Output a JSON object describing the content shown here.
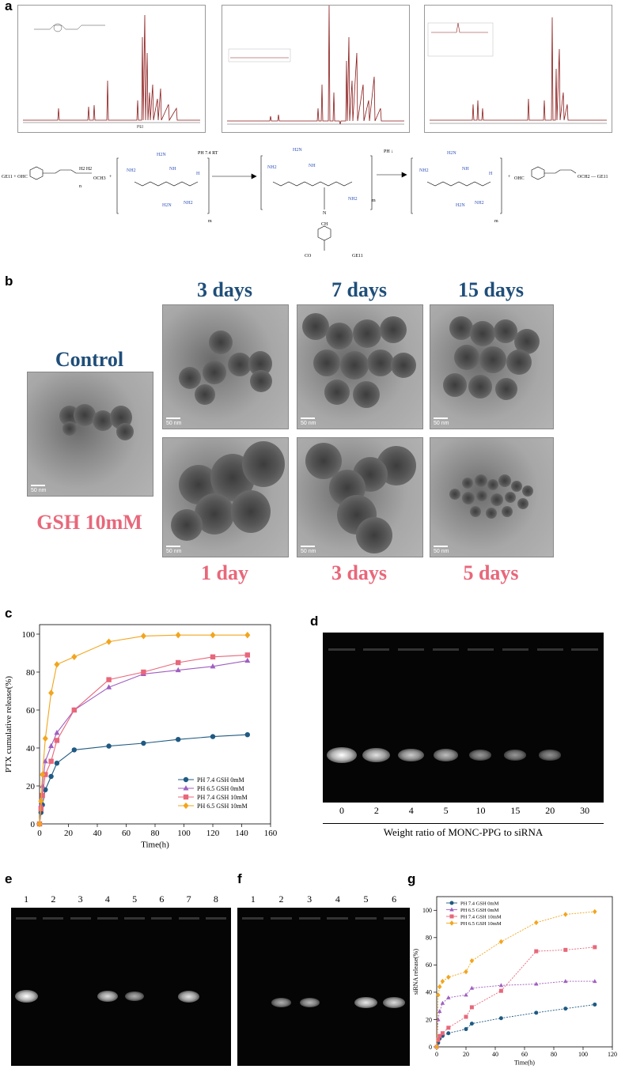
{
  "panels": {
    "a": "a",
    "b": "b",
    "c": "c",
    "d": "d",
    "e": "e",
    "f": "f",
    "g": "g"
  },
  "panel_a": {
    "nmr_label": "PEI",
    "scheme": {
      "reactant": "GE11 + OHC",
      "conditions_1": "PH 7.4   RT",
      "conditions_2": "PH ↓",
      "product_tail": "OCH2 — GE11",
      "product_tail_2": "GE11",
      "imine": "CH",
      "imine_n": "N",
      "carbonyl": "CO",
      "amine_h2n": "H2N",
      "amine_nh2": "NH2",
      "amine_nh": "NH",
      "amine_h": "H",
      "amine_n": "N",
      "repeat_m": "m",
      "repeat_n": "n",
      "ohc": "OHC",
      "och3": "OCH3",
      "h2h2": "H2 H2",
      "plus": "+"
    }
  },
  "panel_b": {
    "top_labels": [
      "3 days",
      "7 days",
      "15 days"
    ],
    "control_label": "Control",
    "gsh_label": "GSH 10mM",
    "bottom_labels": [
      "1 day",
      "3 days",
      "5 days"
    ],
    "scale_text": "50 nm",
    "colors": {
      "top": "#1f4e79",
      "bottom": "#e8677a"
    }
  },
  "panel_d": {
    "lane_labels": [
      "0",
      "2",
      "4",
      "5",
      "10",
      "15",
      "20",
      "30"
    ],
    "band_intensity": [
      1.0,
      0.8,
      0.65,
      0.55,
      0.3,
      0.28,
      0.25,
      0.0
    ],
    "caption": "Weight ratio of MONC-PPG to siRNA"
  },
  "panel_e": {
    "lane_labels": [
      "1",
      "2",
      "3",
      "4",
      "5",
      "6",
      "7",
      "8"
    ],
    "band_intensity": [
      1.0,
      0.0,
      0.0,
      0.75,
      0.45,
      0.0,
      0.8,
      0.0
    ]
  },
  "panel_f": {
    "lane_labels": [
      "1",
      "2",
      "3",
      "4",
      "5",
      "6"
    ],
    "band_intensity": [
      0.0,
      0.45,
      0.5,
      0.0,
      0.85,
      0.75
    ]
  },
  "chart_data": [
    {
      "panel": "c",
      "type": "line",
      "title": "",
      "xlabel": "Time(h)",
      "ylabel": "PTX cumulative release(%)",
      "xlim": [
        0,
        160
      ],
      "ylim": [
        0,
        105
      ],
      "xticks": [
        0,
        20,
        40,
        60,
        80,
        100,
        120,
        140,
        160
      ],
      "yticks": [
        0,
        20,
        40,
        60,
        80,
        100
      ],
      "legend_position": "bottom-right",
      "series": [
        {
          "name": "PH 7.4 GSH 0mM",
          "color": "#1f5a82",
          "marker": "circle",
          "x": [
            0,
            1,
            2,
            4,
            8,
            12,
            24,
            48,
            72,
            96,
            120,
            144
          ],
          "y": [
            0,
            6,
            10,
            18,
            25,
            32,
            39,
            41,
            42.5,
            44.5,
            46,
            47
          ]
        },
        {
          "name": "PH 6.5 GSH 0mM",
          "color": "#a05fc0",
          "marker": "triangle",
          "x": [
            0,
            1,
            2,
            4,
            8,
            12,
            24,
            48,
            72,
            96,
            120,
            144
          ],
          "y": [
            0,
            10,
            20,
            33,
            41,
            48,
            60,
            72,
            79,
            81,
            83,
            86
          ]
        },
        {
          "name": "PH 7.4 GSH 10mM",
          "color": "#e8677a",
          "marker": "square",
          "x": [
            0,
            1,
            2,
            4,
            8,
            12,
            24,
            48,
            72,
            96,
            120,
            144
          ],
          "y": [
            0,
            8,
            15,
            26,
            33,
            44,
            60,
            76,
            80,
            85,
            88,
            89
          ]
        },
        {
          "name": "PH 6.5 GSH 10mM",
          "color": "#f2a51d",
          "marker": "diamond",
          "x": [
            0,
            1,
            2,
            4,
            8,
            12,
            24,
            48,
            72,
            96,
            120,
            144
          ],
          "y": [
            0,
            12,
            26,
            45,
            69,
            84,
            88,
            96,
            99,
            99.5,
            99.5,
            99.5
          ]
        }
      ]
    },
    {
      "panel": "g",
      "type": "line",
      "title": "",
      "xlabel": "Time(h)",
      "ylabel": "siRNA release(%)",
      "xlim": [
        0,
        120
      ],
      "ylim": [
        0,
        110
      ],
      "xticks": [
        0,
        20,
        40,
        60,
        80,
        100,
        120
      ],
      "yticks": [
        0,
        20,
        40,
        60,
        80,
        100
      ],
      "legend_position": "top-left",
      "series": [
        {
          "name": "PH 7.4 GSH 0mM",
          "color": "#1f5a82",
          "marker": "circle",
          "x": [
            0,
            1,
            2,
            4,
            8,
            20,
            24,
            44,
            68,
            88,
            108
          ],
          "y": [
            0,
            3,
            6,
            8,
            10,
            13,
            17,
            21,
            25,
            28,
            31
          ]
        },
        {
          "name": "PH 6.5 GSH 0mM",
          "color": "#a05fc0",
          "marker": "triangle",
          "x": [
            0,
            1,
            2,
            4,
            8,
            20,
            24,
            44,
            68,
            88,
            108
          ],
          "y": [
            0,
            20,
            26,
            32,
            36,
            38,
            43,
            45,
            46,
            48,
            48
          ]
        },
        {
          "name": "PH 7.4 GSH 10mM",
          "color": "#e8677a",
          "marker": "square",
          "x": [
            0,
            1,
            2,
            4,
            8,
            20,
            24,
            44,
            68,
            88,
            108
          ],
          "y": [
            0,
            5,
            8,
            10,
            14,
            22,
            29,
            41,
            70,
            71,
            73
          ]
        },
        {
          "name": "PH 6.5 GSH 10mM",
          "color": "#f2a51d",
          "marker": "diamond",
          "x": [
            0,
            1,
            2,
            4,
            8,
            20,
            24,
            44,
            68,
            88,
            108
          ],
          "y": [
            0,
            38,
            44,
            48,
            51,
            55,
            63,
            77,
            91,
            97,
            99
          ]
        }
      ]
    }
  ]
}
